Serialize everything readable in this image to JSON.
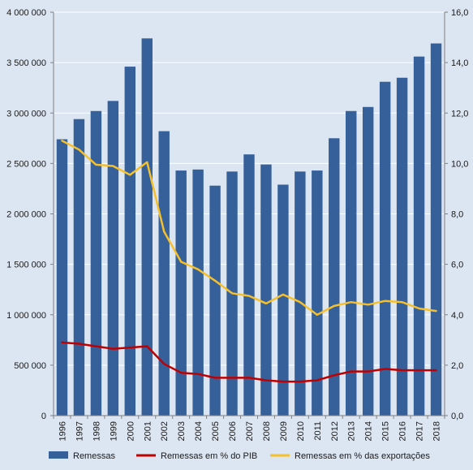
{
  "chart_data": {
    "type": "bar",
    "categories": [
      "1996",
      "1997",
      "1998",
      "1999",
      "2000",
      "2001",
      "2002",
      "2003",
      "2004",
      "2005",
      "2006",
      "2007",
      "2008",
      "2009",
      "2010",
      "2011",
      "2012",
      "2013",
      "2014",
      "2015",
      "2016",
      "2017",
      "2018"
    ],
    "series": [
      {
        "name": "Remessas",
        "type": "bar",
        "axis": "left",
        "color": "#35609a",
        "values": [
          2740000,
          2940000,
          3020000,
          3120000,
          3460000,
          3740000,
          2820000,
          2430000,
          2440000,
          2280000,
          2420000,
          2590000,
          2490000,
          2290000,
          2420000,
          2430000,
          2750000,
          3020000,
          3060000,
          3310000,
          3350000,
          3560000,
          3690000
        ]
      },
      {
        "name": "Remessas em % do PIB",
        "type": "line",
        "axis": "right",
        "color": "#c00000",
        "values": [
          2.9,
          2.85,
          2.75,
          2.65,
          2.7,
          2.75,
          2.05,
          1.7,
          1.65,
          1.5,
          1.5,
          1.5,
          1.4,
          1.35,
          1.35,
          1.4,
          1.6,
          1.75,
          1.75,
          1.85,
          1.8,
          1.8,
          1.8
        ]
      },
      {
        "name": "Remessas em % das exportações",
        "type": "line",
        "axis": "right",
        "color": "#f5c02c",
        "values": [
          10.9,
          10.55,
          9.95,
          9.9,
          9.55,
          10.05,
          7.3,
          6.1,
          5.8,
          5.35,
          4.85,
          4.75,
          4.45,
          4.8,
          4.5,
          4.0,
          4.35,
          4.5,
          4.4,
          4.55,
          4.5,
          4.25,
          4.15
        ]
      }
    ],
    "y_left": {
      "min": 0,
      "max": 4000000,
      "ticks": [
        0,
        500000,
        1000000,
        1500000,
        2000000,
        2500000,
        3000000,
        3500000,
        4000000
      ],
      "tick_labels": [
        "0",
        "500 000",
        "1 000 000",
        "1 500 000",
        "2 000 000",
        "2 500 000",
        "3 000 000",
        "3 500 000",
        "4 000 000"
      ]
    },
    "y_right": {
      "min": 0,
      "max": 16,
      "ticks": [
        0,
        2,
        4,
        6,
        8,
        10,
        12,
        14,
        16
      ],
      "tick_labels": [
        "0,0",
        "2,0",
        "4,0",
        "6,0",
        "8,0",
        "10,0",
        "12,0",
        "14,0",
        "16,0"
      ]
    },
    "grid": true,
    "legend": "bottom",
    "colors": {
      "background": "#dce6f2",
      "grid": "#ffffff",
      "axis": "#7f7f7f"
    }
  }
}
